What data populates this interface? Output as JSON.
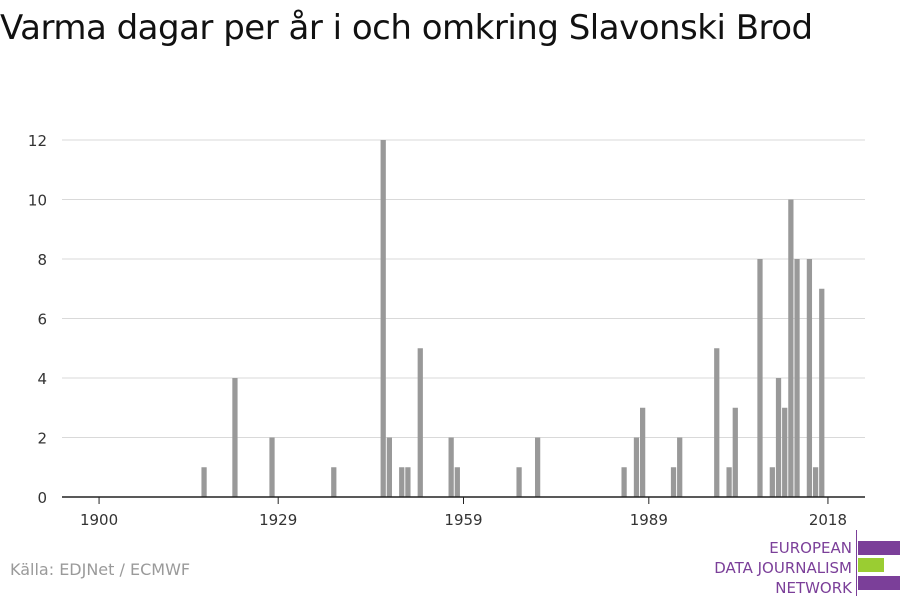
{
  "title": "Varma dagar per år i och omkring Slavonski Brod",
  "source": "Källa: EDJNet / ECMWF",
  "logo": {
    "lines": [
      "EUROPEAN",
      "DATA JOURNALISM",
      "NETWORK"
    ],
    "purple": "#7b3f99",
    "green": "#9acd32"
  },
  "colors": {
    "bar": "#999999",
    "grid": "#d9d9d9",
    "axis": "#222222"
  },
  "chart_data": {
    "type": "bar",
    "title": "Varma dagar per år i och omkring Slavonski Brod",
    "xlabel": "",
    "ylabel": "",
    "x_range": [
      1894,
      2024
    ],
    "ylim": [
      0,
      12
    ],
    "xticks": [
      1900,
      1929,
      1959,
      1989,
      2018
    ],
    "yticks": [
      0,
      2,
      4,
      6,
      8,
      10,
      12
    ],
    "grid": true,
    "legend": "none",
    "points": [
      {
        "x": 1917,
        "y": 1
      },
      {
        "x": 1922,
        "y": 4
      },
      {
        "x": 1928,
        "y": 2
      },
      {
        "x": 1938,
        "y": 1
      },
      {
        "x": 1946,
        "y": 12
      },
      {
        "x": 1947,
        "y": 2
      },
      {
        "x": 1949,
        "y": 1
      },
      {
        "x": 1950,
        "y": 1
      },
      {
        "x": 1952,
        "y": 5
      },
      {
        "x": 1957,
        "y": 2
      },
      {
        "x": 1958,
        "y": 1
      },
      {
        "x": 1968,
        "y": 1
      },
      {
        "x": 1971,
        "y": 2
      },
      {
        "x": 1985,
        "y": 1
      },
      {
        "x": 1987,
        "y": 2
      },
      {
        "x": 1988,
        "y": 3
      },
      {
        "x": 1993,
        "y": 1
      },
      {
        "x": 1994,
        "y": 2
      },
      {
        "x": 2000,
        "y": 5
      },
      {
        "x": 2002,
        "y": 1
      },
      {
        "x": 2003,
        "y": 3
      },
      {
        "x": 2007,
        "y": 8
      },
      {
        "x": 2009,
        "y": 1
      },
      {
        "x": 2010,
        "y": 4
      },
      {
        "x": 2011,
        "y": 3
      },
      {
        "x": 2012,
        "y": 10
      },
      {
        "x": 2013,
        "y": 8
      },
      {
        "x": 2015,
        "y": 8
      },
      {
        "x": 2016,
        "y": 1
      },
      {
        "x": 2017,
        "y": 7
      }
    ]
  }
}
